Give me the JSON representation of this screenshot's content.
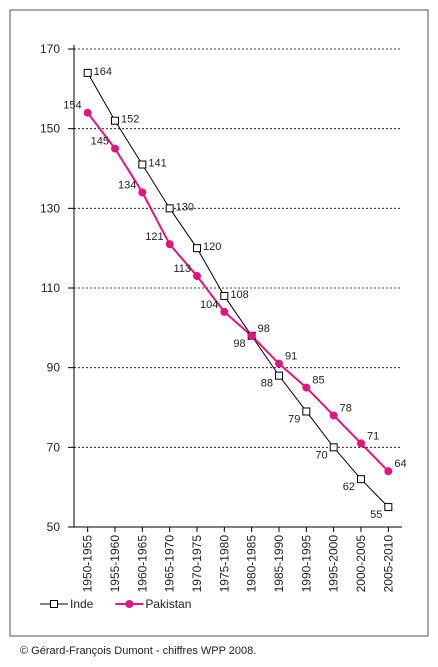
{
  "chart_data": {
    "type": "line",
    "categories": [
      "1950-1955",
      "1955-1960",
      "1960-1965",
      "1965-1970",
      "1970-1975",
      "1975-1980",
      "1980-1985",
      "1985-1990",
      "1990-1995",
      "1995-2000",
      "2000-2005",
      "2005-2010"
    ],
    "series": [
      {
        "name": "Inde",
        "color": "#000000",
        "marker": "square",
        "values": [
          164,
          152,
          141,
          130,
          120,
          108,
          98,
          88,
          79,
          70,
          62,
          55
        ]
      },
      {
        "name": "Pakistan",
        "color": "#e2157f",
        "marker": "circle",
        "values": [
          154,
          145,
          134,
          121,
          113,
          104,
          98,
          91,
          85,
          78,
          71,
          64
        ]
      }
    ],
    "ylim": [
      50,
      170
    ],
    "yticks": [
      50,
      70,
      90,
      110,
      130,
      150,
      170
    ],
    "grid": true,
    "source": "© Gérard-François Dumont - chiffres WPP 2008."
  }
}
